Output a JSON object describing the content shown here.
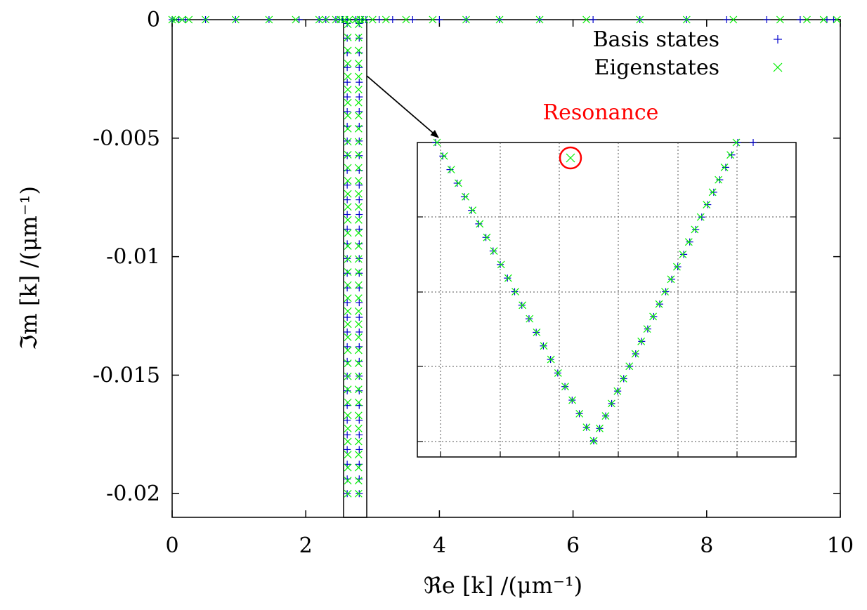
{
  "chart_data": {
    "type": "scatter",
    "title": "",
    "xlabel": "ℜе [k] /(μm⁻¹)",
    "ylabel": "ℑm [k] /(μm⁻¹)",
    "xlim": [
      0,
      10
    ],
    "ylim": [
      -0.021,
      0
    ],
    "xticks": [
      0,
      2,
      4,
      6,
      8,
      10
    ],
    "xtick_labels": [
      "0",
      "2",
      "4",
      "6",
      "8",
      "10"
    ],
    "yticks": [
      0,
      -0.005,
      -0.01,
      -0.015,
      -0.02
    ],
    "ytick_labels": [
      "0",
      "-0.005",
      "-0.01",
      "-0.015",
      "-0.02"
    ],
    "legend_position": "top-right",
    "series": [
      {
        "name": "Basis states",
        "marker": "plus",
        "color": "#0000cc",
        "real_axis_x": [
          0,
          0.1,
          0.2,
          0.5,
          0.95,
          1.45,
          1.9,
          2.2,
          2.3,
          2.45,
          2.5,
          2.55,
          2.62,
          2.75,
          2.8,
          2.85,
          2.9,
          3.1,
          3.3,
          3.6,
          4.0,
          4.4,
          4.9,
          5.5,
          6.3,
          7.0,
          7.7,
          8.3,
          8.9,
          9.4,
          9.8,
          9.9
        ],
        "branches": [
          {
            "x": 2.62,
            "y_from": -0.02,
            "y_to": 0,
            "step": 0.00062
          },
          {
            "x": 2.8,
            "y_from": -0.02,
            "y_to": 0,
            "step": 0.00062
          }
        ]
      },
      {
        "name": "Eigenstates",
        "marker": "cross",
        "color": "#00ee00",
        "real_axis_x": [
          0,
          0.05,
          0.15,
          0.25,
          0.5,
          0.95,
          1.45,
          1.85,
          2.2,
          2.3,
          2.45,
          2.52,
          2.58,
          2.65,
          2.75,
          2.82,
          2.88,
          3.0,
          3.2,
          3.5,
          3.9,
          4.4,
          4.9,
          5.5,
          6.2,
          7.0,
          7.7,
          8.4,
          9.1,
          9.5,
          9.75,
          9.95
        ],
        "branches": [
          {
            "x": 2.63,
            "y_from": -0.02,
            "y_to": 0,
            "step": 0.00055
          },
          {
            "x": 2.79,
            "y_from": -0.02,
            "y_to": 0,
            "step": 0.00055
          }
        ]
      }
    ],
    "inset": {
      "grid": true,
      "frame_color": "#000000",
      "v_points_left": 22,
      "v_points_right": 24,
      "resonance_point": {
        "u": 0.39,
        "v": 0.05
      }
    },
    "annotation": {
      "text": "Resonance",
      "color": "#ff0000"
    }
  }
}
